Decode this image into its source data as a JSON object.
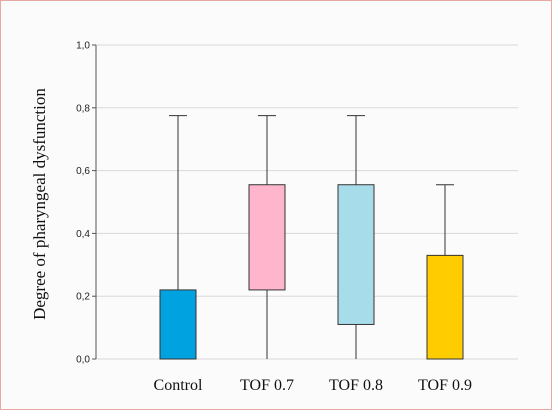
{
  "chart_data": {
    "type": "box",
    "title": "",
    "xlabel": "",
    "ylabel": "Degree of pharyngeal dysfunction",
    "ylim": [
      0.0,
      1.0
    ],
    "yticks": [
      "0,0",
      "0,2",
      "0,4",
      "0,6",
      "0,8",
      "1,0"
    ],
    "grid": true,
    "categories": [
      "Control",
      "TOF 0.7",
      "TOF 0.8",
      "TOF 0.9"
    ],
    "boxes": [
      {
        "category": "Control",
        "whisker_low": 0.0,
        "q1": 0.0,
        "q3": 0.22,
        "whisker_high": 0.775,
        "color": "#00a3e0"
      },
      {
        "category": "TOF 0.7",
        "whisker_low": 0.0,
        "q1": 0.22,
        "q3": 0.555,
        "whisker_high": 0.775,
        "color": "#ffb6cc"
      },
      {
        "category": "TOF 0.8",
        "whisker_low": 0.0,
        "q1": 0.11,
        "q3": 0.555,
        "whisker_high": 0.775,
        "color": "#a7dcea"
      },
      {
        "category": "TOF 0.9",
        "whisker_low": 0.0,
        "q1": 0.0,
        "q3": 0.33,
        "whisker_high": 0.555,
        "color": "#ffcc00"
      }
    ]
  }
}
